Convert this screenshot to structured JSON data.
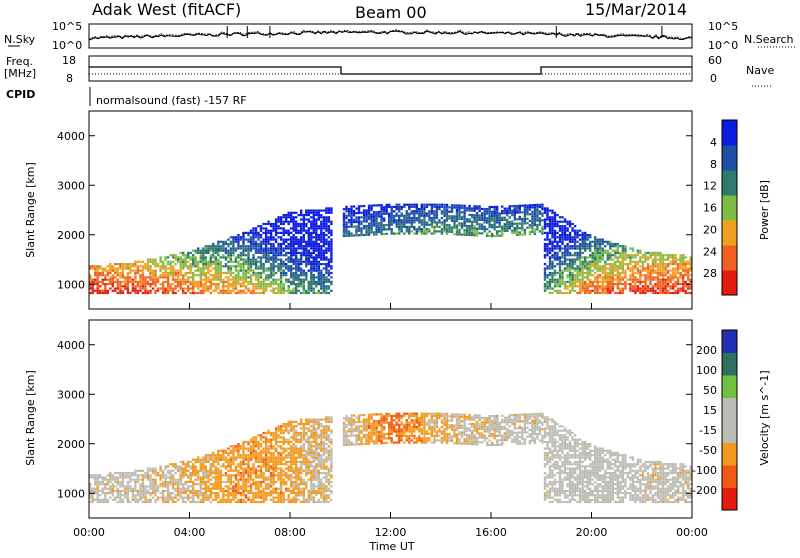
{
  "header": {
    "station": "Adak West (fitACF)",
    "beam": "Beam 00",
    "date": "15/Mar/2014"
  },
  "noise_panel": {
    "left_label": "N.Sky",
    "right_label": "N.Search",
    "left_ticks": [
      "10^5",
      "10^0"
    ],
    "right_ticks": [
      "10^5",
      "10^0"
    ]
  },
  "freq_panel": {
    "left_label_line1": "Freq.",
    "left_label_line2": "[MHz]",
    "right_label": "Nave",
    "left_ticks": [
      "18",
      "8"
    ],
    "right_ticks": [
      "60",
      "0"
    ]
  },
  "cpid": {
    "label": "CPID",
    "text": "normalsound (fast) -157 RF"
  },
  "chart_data": [
    {
      "type": "heatmap",
      "title": "",
      "quantity": "Power",
      "xlabel": "",
      "ylabel": "Slant Range [km]",
      "colorbar_label": "Power [dB]",
      "xlim_hours": [
        0,
        24
      ],
      "ylim_km": [
        500,
        4500
      ],
      "y_ticks": [
        "1000",
        "2000",
        "3000",
        "4000"
      ],
      "colorbar_ticks": [
        "4",
        "8",
        "12",
        "16",
        "20",
        "24",
        "28"
      ],
      "colorbar_colors": [
        "#0a1adf",
        "#1f50a8",
        "#2e7a6e",
        "#7ebc45",
        "#f0a020",
        "#f06020",
        "#e41c10"
      ],
      "x": [
        0,
        2,
        4,
        6,
        8,
        10,
        12,
        14,
        16,
        18,
        20,
        22,
        24
      ],
      "series": [
        {
          "values_range_km": [
            1100,
            1200,
            1400,
            1750,
            2200,
            2300,
            2350,
            2350,
            2300,
            2350,
            1700,
            1400,
            1300
          ]
        },
        {
          "values_power_db": [
            28,
            27,
            24,
            22,
            16,
            10,
            12,
            14,
            14,
            14,
            24,
            27,
            28
          ]
        }
      ]
    },
    {
      "type": "heatmap",
      "title": "",
      "quantity": "Velocity",
      "xlabel": "Time UT",
      "ylabel": "Slant Range [km]",
      "colorbar_label": "Velocity [m s^-1]",
      "xlim_hours": [
        0,
        24
      ],
      "ylim_km": [
        500,
        4500
      ],
      "y_ticks": [
        "1000",
        "2000",
        "3000",
        "4000"
      ],
      "x_ticks": [
        "00:00",
        "04:00",
        "08:00",
        "12:00",
        "16:00",
        "20:00",
        "00:00"
      ],
      "colorbar_ticks": [
        "200",
        "100",
        "50",
        "15",
        "-15",
        "-50",
        "-100",
        "-200"
      ],
      "colorbar_colors": [
        "#2030b0",
        "#2f7060",
        "#72c042",
        "#bdbcb4",
        "#bdbcb4",
        "#f29a1e",
        "#f05a16",
        "#e41c10"
      ],
      "x": [
        0,
        2,
        4,
        6,
        8,
        10,
        12,
        14,
        16,
        18,
        20,
        22,
        24
      ],
      "series": [
        {
          "values_velocity_ms": [
            0,
            0,
            -20,
            -40,
            -30,
            0,
            -60,
            -20,
            0,
            0,
            30,
            0,
            0
          ]
        }
      ]
    }
  ]
}
